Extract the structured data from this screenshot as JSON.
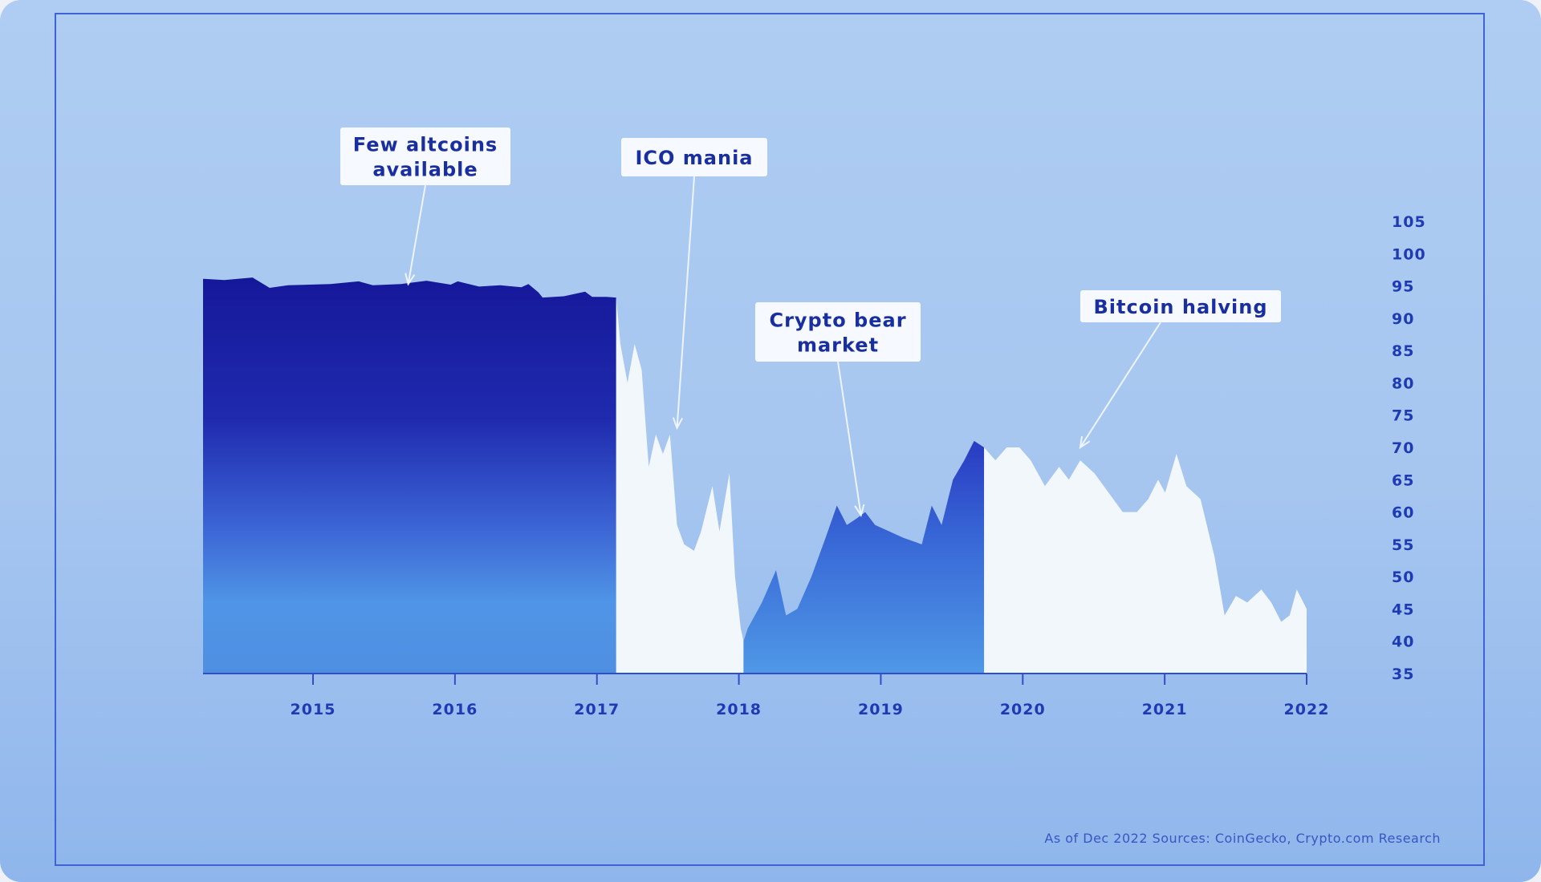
{
  "chart_data": {
    "type": "area",
    "title": "",
    "xlabel": "",
    "ylabel": "",
    "xlim": [
      2014.2,
      2022.0
    ],
    "ylim": [
      35,
      105
    ],
    "x_ticks": [
      "2015",
      "2016",
      "2017",
      "2018",
      "2019",
      "2020",
      "2021",
      "2022"
    ],
    "y_ticks": [
      "105",
      "100",
      "95",
      "90",
      "85",
      "80",
      "75",
      "70",
      "65",
      "60",
      "55",
      "50",
      "45",
      "40",
      "35"
    ],
    "colors": {
      "dark_top": "#16189a",
      "dark_bottom": "#4f95e6",
      "light_fill": "#f1f7fb",
      "axis": "#2f4fc8",
      "callout_text": "#1a2f9f"
    },
    "segments": [
      {
        "style": "dark",
        "points": [
          [
            2014.2,
            96.1
          ],
          [
            2014.35,
            95.9
          ],
          [
            2014.55,
            96.3
          ],
          [
            2014.67,
            94.7
          ],
          [
            2014.8,
            95.1
          ],
          [
            2015.1,
            95.3
          ],
          [
            2015.3,
            95.7
          ],
          [
            2015.4,
            95.1
          ],
          [
            2015.6,
            95.3
          ],
          [
            2015.78,
            95.8
          ],
          [
            2015.95,
            95.2
          ],
          [
            2016.0,
            95.7
          ],
          [
            2016.15,
            94.9
          ],
          [
            2016.3,
            95.1
          ],
          [
            2016.45,
            94.8
          ],
          [
            2016.5,
            95.3
          ],
          [
            2016.57,
            94.0
          ],
          [
            2016.6,
            93.2
          ],
          [
            2016.75,
            93.4
          ],
          [
            2016.9,
            94.1
          ],
          [
            2016.95,
            93.3
          ],
          [
            2017.05,
            93.3
          ],
          [
            2017.12,
            93.2
          ]
        ]
      },
      {
        "style": "light",
        "points": [
          [
            2017.12,
            93.2
          ],
          [
            2017.15,
            86
          ],
          [
            2017.2,
            80
          ],
          [
            2017.25,
            86
          ],
          [
            2017.3,
            82
          ],
          [
            2017.35,
            67
          ],
          [
            2017.4,
            72
          ],
          [
            2017.45,
            69
          ],
          [
            2017.5,
            72
          ],
          [
            2017.55,
            58
          ],
          [
            2017.6,
            55
          ],
          [
            2017.67,
            54
          ],
          [
            2017.72,
            57
          ],
          [
            2017.8,
            64
          ],
          [
            2017.85,
            57
          ],
          [
            2017.92,
            66
          ],
          [
            2017.96,
            50
          ],
          [
            2018.0,
            42
          ],
          [
            2018.02,
            40
          ]
        ]
      },
      {
        "style": "blue",
        "points": [
          [
            2018.02,
            40
          ],
          [
            2018.05,
            42
          ],
          [
            2018.15,
            46
          ],
          [
            2018.25,
            51
          ],
          [
            2018.32,
            44
          ],
          [
            2018.4,
            45
          ],
          [
            2018.5,
            50
          ],
          [
            2018.6,
            56
          ],
          [
            2018.68,
            61
          ],
          [
            2018.75,
            58
          ],
          [
            2018.82,
            59
          ],
          [
            2018.88,
            60
          ],
          [
            2018.95,
            58
          ],
          [
            2019.05,
            57
          ],
          [
            2019.15,
            56
          ],
          [
            2019.28,
            55
          ],
          [
            2019.35,
            61
          ],
          [
            2019.42,
            58
          ],
          [
            2019.5,
            65
          ],
          [
            2019.58,
            68
          ],
          [
            2019.65,
            71
          ],
          [
            2019.72,
            70
          ]
        ]
      },
      {
        "style": "light",
        "points": [
          [
            2019.72,
            70
          ],
          [
            2019.8,
            68
          ],
          [
            2019.88,
            70
          ],
          [
            2019.97,
            70
          ],
          [
            2020.05,
            68
          ],
          [
            2020.15,
            64
          ],
          [
            2020.25,
            67
          ],
          [
            2020.32,
            65
          ],
          [
            2020.4,
            68
          ],
          [
            2020.5,
            66
          ],
          [
            2020.6,
            63
          ],
          [
            2020.7,
            60
          ],
          [
            2020.8,
            60
          ],
          [
            2020.88,
            62
          ],
          [
            2020.95,
            65
          ],
          [
            2021.0,
            63
          ],
          [
            2021.08,
            69
          ],
          [
            2021.15,
            64
          ],
          [
            2021.25,
            62
          ],
          [
            2021.35,
            53
          ],
          [
            2021.42,
            44
          ],
          [
            2021.5,
            47
          ],
          [
            2021.58,
            46
          ],
          [
            2021.68,
            48
          ],
          [
            2021.75,
            46
          ],
          [
            2021.82,
            43
          ],
          [
            2021.88,
            44
          ],
          [
            2021.93,
            48
          ],
          [
            2022.0,
            45
          ]
        ]
      }
    ],
    "annotations": [
      {
        "text": [
          "Few altcoins",
          "available"
        ],
        "target": [
          2015.65,
          95.3
        ]
      },
      {
        "text": [
          "ICO mania"
        ],
        "target": [
          2017.55,
          73
        ]
      },
      {
        "text": [
          "Crypto bear",
          "market"
        ],
        "target": [
          2018.85,
          59.5
        ]
      },
      {
        "text": [
          "Bitcoin halving"
        ],
        "target": [
          2020.4,
          70
        ]
      }
    ],
    "source_note": "As of Dec 2022 Sources: CoinGecko, Crypto.com Research"
  }
}
